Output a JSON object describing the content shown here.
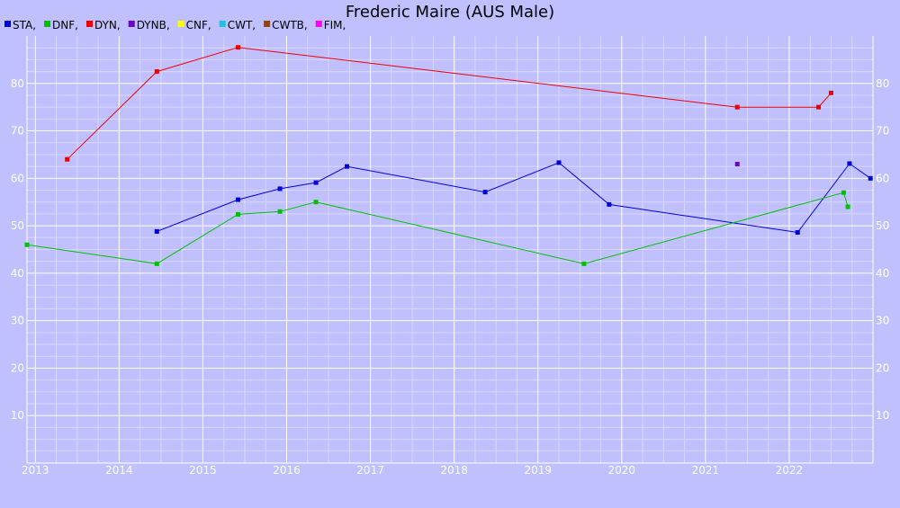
{
  "chart_data": {
    "type": "line",
    "title": "Frederic Maire (AUS Male)",
    "xlabel": "",
    "ylabel": "",
    "xlim": [
      2012.9,
      2023.0
    ],
    "ylim": [
      0,
      90
    ],
    "x_ticks": [
      "2013",
      "2014",
      "2015",
      "2016",
      "2017",
      "2018",
      "2019",
      "2020",
      "2021",
      "2022"
    ],
    "y_ticks": [
      "10",
      "20",
      "30",
      "40",
      "50",
      "60",
      "70",
      "80"
    ],
    "grid": true,
    "legend_position": "top-left",
    "legend": [
      {
        "name": "STA",
        "color": "#0000dd"
      },
      {
        "name": "DNF",
        "color": "#00c000"
      },
      {
        "name": "DYN",
        "color": "#ee0000"
      },
      {
        "name": "DYNB",
        "color": "#7000d0"
      },
      {
        "name": "CNF",
        "color": "#ffff00"
      },
      {
        "name": "CWT",
        "color": "#20c0e0"
      },
      {
        "name": "CWTB",
        "color": "#a04000"
      },
      {
        "name": "FIM",
        "color": "#ff00ff"
      }
    ],
    "series": [
      {
        "name": "STA",
        "color": "#0000dd",
        "points": [
          [
            2014.45,
            48.8
          ],
          [
            2015.42,
            55.5
          ],
          [
            2015.92,
            57.8
          ],
          [
            2016.35,
            59.1
          ],
          [
            2016.72,
            62.5
          ],
          [
            2018.37,
            57.1
          ],
          [
            2019.25,
            63.3
          ],
          [
            2019.85,
            54.5
          ],
          [
            2022.1,
            48.6
          ],
          [
            2022.72,
            63.1
          ],
          [
            2022.97,
            60.0
          ]
        ]
      },
      {
        "name": "DNF",
        "color": "#00c000",
        "points": [
          [
            2012.9,
            46.0
          ],
          [
            2014.45,
            42.0
          ],
          [
            2015.42,
            52.4
          ],
          [
            2015.92,
            53.0
          ],
          [
            2016.35,
            55.0
          ],
          [
            2019.55,
            42.0
          ],
          [
            2022.65,
            57.0
          ],
          [
            2022.7,
            54.0
          ]
        ]
      },
      {
        "name": "DYN",
        "color": "#ee0000",
        "points": [
          [
            2013.38,
            64.0
          ],
          [
            2014.45,
            82.5
          ],
          [
            2015.42,
            87.6
          ],
          [
            2021.38,
            75.0
          ],
          [
            2022.35,
            75.0
          ],
          [
            2022.5,
            78.0
          ]
        ]
      },
      {
        "name": "DYNB",
        "color": "#7000d0",
        "points": [
          [
            2021.38,
            63.0
          ]
        ]
      }
    ]
  }
}
